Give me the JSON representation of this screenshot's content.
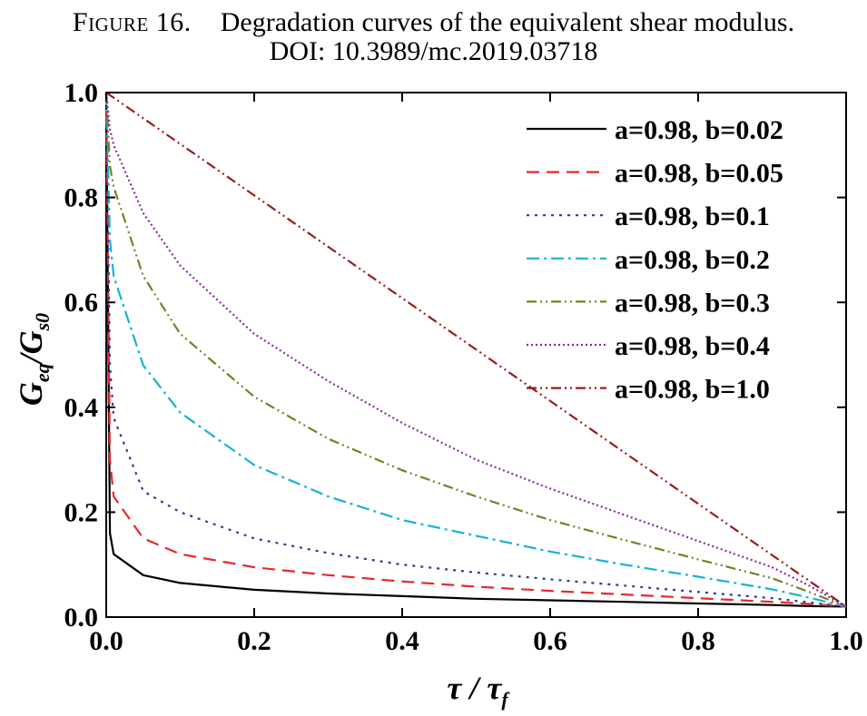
{
  "caption": {
    "figure_label": "Figure 16.",
    "text": "Degradation curves of the equivalent shear modulus.",
    "doi": "DOI: 10.3989/mc.2019.03718"
  },
  "chart_data": {
    "type": "line",
    "title": "",
    "xlabel": {
      "main": "τ / τ",
      "sub": "f"
    },
    "ylabel": {
      "g1": "G",
      "s1": "eq",
      "slash": "/",
      "g2": "G",
      "s2": "s0"
    },
    "xlim": [
      0,
      1
    ],
    "ylim": [
      0,
      1
    ],
    "x_ticks": [
      "0.0",
      "0.2",
      "0.4",
      "0.6",
      "0.8",
      "1.0"
    ],
    "y_ticks": [
      "0.0",
      "0.2",
      "0.4",
      "0.6",
      "0.8",
      "1.0"
    ],
    "grid": false,
    "legend_position": "top-right",
    "series": [
      {
        "name": "a=0.98, b=0.02",
        "color": "#000000",
        "dash": "solid",
        "x": [
          0,
          0.005,
          0.01,
          0.05,
          0.1,
          0.2,
          0.3,
          0.4,
          0.5,
          0.6,
          0.7,
          0.8,
          0.9,
          0.95,
          1.0
        ],
        "y": [
          1.0,
          0.16,
          0.12,
          0.08,
          0.065,
          0.052,
          0.045,
          0.04,
          0.035,
          0.032,
          0.029,
          0.026,
          0.023,
          0.021,
          0.02
        ]
      },
      {
        "name": "a=0.98, b=0.05",
        "color": "#e8282a",
        "dash": "dashed",
        "x": [
          0,
          0.005,
          0.01,
          0.05,
          0.1,
          0.2,
          0.3,
          0.4,
          0.5,
          0.6,
          0.7,
          0.8,
          0.9,
          0.95,
          1.0
        ],
        "y": [
          1.0,
          0.3,
          0.23,
          0.15,
          0.12,
          0.095,
          0.08,
          0.068,
          0.058,
          0.05,
          0.043,
          0.036,
          0.029,
          0.025,
          0.02
        ]
      },
      {
        "name": "a=0.98, b=0.1",
        "color": "#2a3d9b",
        "dash": "dotted",
        "x": [
          0,
          0.005,
          0.01,
          0.05,
          0.1,
          0.2,
          0.3,
          0.4,
          0.5,
          0.6,
          0.7,
          0.8,
          0.9,
          0.95,
          1.0
        ],
        "y": [
          1.0,
          0.48,
          0.38,
          0.24,
          0.2,
          0.15,
          0.122,
          0.1,
          0.085,
          0.072,
          0.06,
          0.048,
          0.036,
          0.028,
          0.02
        ]
      },
      {
        "name": "a=0.98, b=0.2",
        "color": "#14b4d0",
        "dash": "dashdot",
        "x": [
          0,
          0.005,
          0.01,
          0.05,
          0.1,
          0.2,
          0.3,
          0.4,
          0.5,
          0.6,
          0.7,
          0.8,
          0.9,
          0.95,
          1.0
        ],
        "y": [
          1.0,
          0.72,
          0.65,
          0.48,
          0.39,
          0.29,
          0.23,
          0.185,
          0.155,
          0.125,
          0.1,
          0.077,
          0.053,
          0.037,
          0.02
        ]
      },
      {
        "name": "a=0.98, b=0.3",
        "color": "#7d7d28",
        "dash": "dashdotdot",
        "x": [
          0,
          0.005,
          0.01,
          0.05,
          0.1,
          0.2,
          0.3,
          0.4,
          0.5,
          0.6,
          0.7,
          0.8,
          0.9,
          0.95,
          1.0
        ],
        "y": [
          1.0,
          0.86,
          0.82,
          0.65,
          0.54,
          0.42,
          0.34,
          0.28,
          0.23,
          0.185,
          0.147,
          0.11,
          0.074,
          0.048,
          0.02
        ]
      },
      {
        "name": "a=0.98, b=0.4",
        "color": "#8a2c9e",
        "dash": "densedotted",
        "x": [
          0,
          0.005,
          0.01,
          0.05,
          0.1,
          0.2,
          0.3,
          0.4,
          0.5,
          0.6,
          0.7,
          0.8,
          0.9,
          0.95,
          1.0
        ],
        "y": [
          1.0,
          0.93,
          0.9,
          0.77,
          0.67,
          0.54,
          0.45,
          0.37,
          0.3,
          0.245,
          0.195,
          0.145,
          0.095,
          0.06,
          0.02
        ]
      },
      {
        "name": "a=0.98, b=1.0",
        "color": "#9b1b1b",
        "dash": "dashdotdot",
        "x": [
          0,
          0.5,
          1.0
        ],
        "y": [
          1.0,
          0.51,
          0.02
        ]
      }
    ]
  }
}
